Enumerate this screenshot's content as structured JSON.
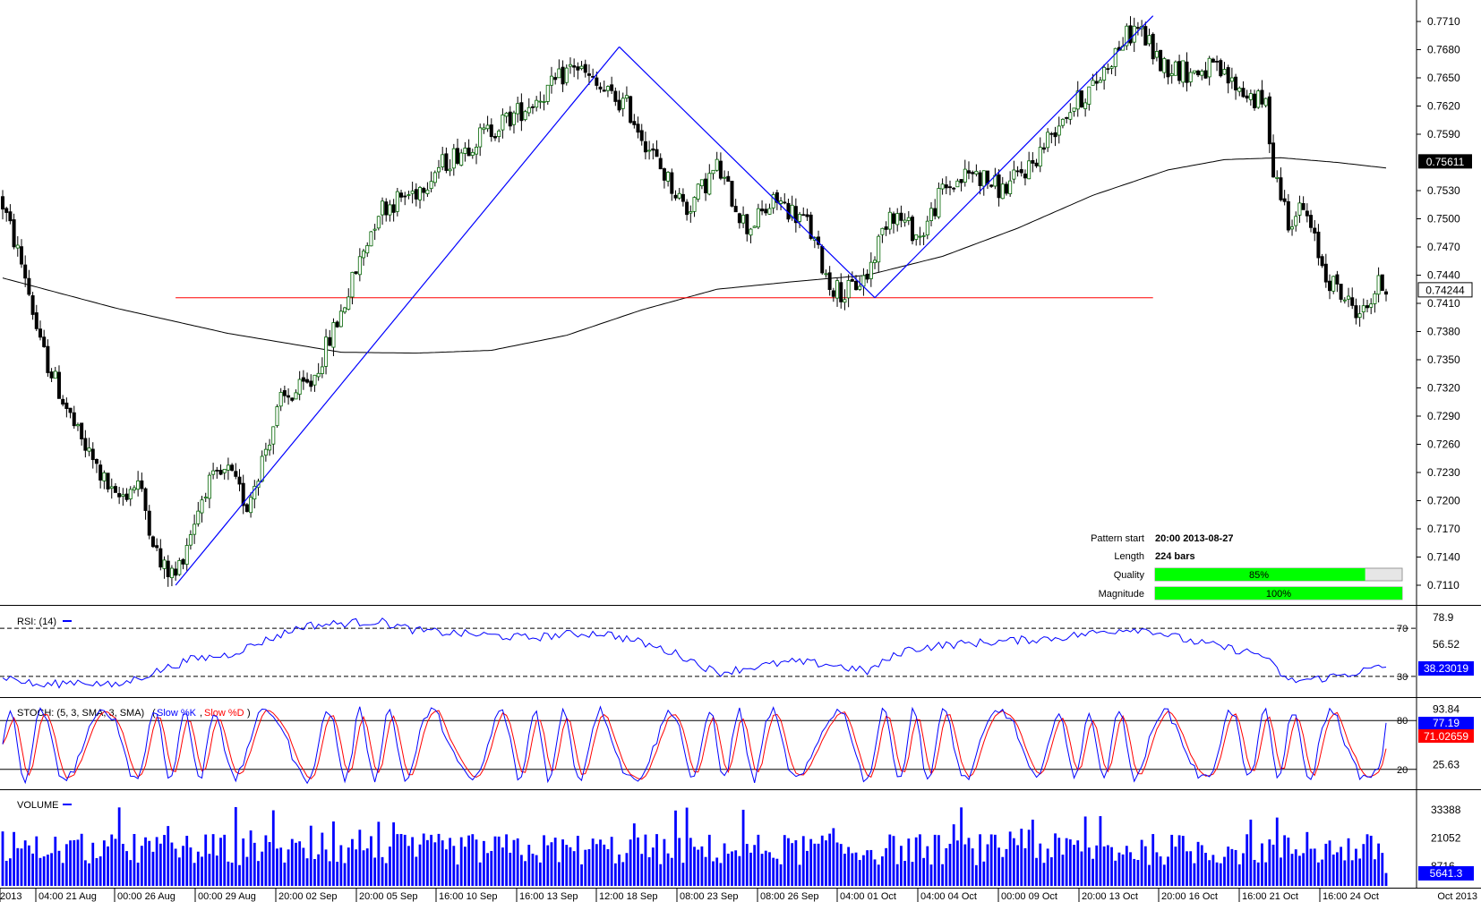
{
  "colors": {
    "candle_bull": "#006400",
    "candle_bear": "#000000",
    "pattern_line": "#0000ff",
    "level_line": "#ff0000",
    "ma_line": "#000000",
    "rsi_line": "#0000ff",
    "stoch_k": "#0000ff",
    "stoch_d": "#ff0000",
    "volume_bar": "#0000ff",
    "quality_fill": "#00ff00",
    "price_tag_bg": "#000000",
    "indicator_tag_bg": "#0000ff",
    "stoch_tag_bg": "#ff0000"
  },
  "chart_data": {
    "type": "candlestick",
    "price_axis": {
      "range": [
        0.7095,
        0.7725
      ],
      "ticks": [
        "0.7710",
        "0.7680",
        "0.7650",
        "0.7620",
        "0.7590",
        "0.7530",
        "0.7500",
        "0.7470",
        "0.7440",
        "0.7410",
        "0.7380",
        "0.7350",
        "0.7320",
        "0.7290",
        "0.7260",
        "0.7230",
        "0.7200",
        "0.7170",
        "0.7140",
        "0.7110"
      ],
      "current_tag": "0.75611",
      "current_value": 0.75611,
      "last_tag": "0.74244",
      "last_value": 0.74244
    },
    "time_axis": {
      "labels": [
        "2013",
        "04:00 21 Aug",
        "00:00 26 Aug",
        "00:00 29 Aug",
        "20:00 02 Sep",
        "20:00 05 Sep",
        "16:00 10 Sep",
        "16:00 13 Sep",
        "12:00 18 Sep",
        "08:00 23 Sep",
        "08:00 26 Sep",
        "04:00 01 Oct",
        "04:00 04 Oct",
        "00:00 09 Oct",
        "20:00 13 Oct",
        "20:00 16 Oct",
        "16:00 21 Oct",
        "16:00 24 Oct"
      ],
      "right_label": "Oct 2013"
    },
    "anchors": [
      [
        0,
        0.7515
      ],
      [
        6,
        0.744
      ],
      [
        10,
        0.7365
      ],
      [
        20,
        0.727
      ],
      [
        30,
        0.72
      ],
      [
        36,
        0.722
      ],
      [
        42,
        0.713
      ],
      [
        46,
        0.712
      ],
      [
        54,
        0.7215
      ],
      [
        60,
        0.723
      ],
      [
        65,
        0.7195
      ],
      [
        74,
        0.7305
      ],
      [
        82,
        0.7325
      ],
      [
        90,
        0.74
      ],
      [
        100,
        0.751
      ],
      [
        110,
        0.753
      ],
      [
        116,
        0.7555
      ],
      [
        126,
        0.7585
      ],
      [
        136,
        0.761
      ],
      [
        146,
        0.764
      ],
      [
        152,
        0.7665
      ],
      [
        158,
        0.764
      ],
      [
        166,
        0.762
      ],
      [
        174,
        0.756
      ],
      [
        182,
        0.751
      ],
      [
        190,
        0.7555
      ],
      [
        198,
        0.749
      ],
      [
        206,
        0.752
      ],
      [
        214,
        0.7495
      ],
      [
        220,
        0.743
      ],
      [
        224,
        0.742
      ],
      [
        230,
        0.744
      ],
      [
        236,
        0.751
      ],
      [
        244,
        0.748
      ],
      [
        250,
        0.753
      ],
      [
        258,
        0.755
      ],
      [
        266,
        0.753
      ],
      [
        274,
        0.756
      ],
      [
        282,
        0.761
      ],
      [
        290,
        0.764
      ],
      [
        298,
        0.769
      ],
      [
        302,
        0.7705
      ],
      [
        308,
        0.7665
      ],
      [
        316,
        0.7655
      ],
      [
        322,
        0.766
      ],
      [
        330,
        0.7635
      ],
      [
        336,
        0.762
      ],
      [
        338,
        0.7555
      ],
      [
        342,
        0.75
      ],
      [
        346,
        0.751
      ],
      [
        352,
        0.744
      ],
      [
        358,
        0.741
      ],
      [
        362,
        0.74
      ],
      [
        366,
        0.743
      ],
      [
        368,
        0.7425
      ]
    ],
    "moving_average": [
      [
        0,
        0.7437
      ],
      [
        30,
        0.7405
      ],
      [
        60,
        0.7378
      ],
      [
        90,
        0.7358
      ],
      [
        110,
        0.7357
      ],
      [
        130,
        0.736
      ],
      [
        150,
        0.7376
      ],
      [
        170,
        0.7403
      ],
      [
        190,
        0.7425
      ],
      [
        210,
        0.7433
      ],
      [
        230,
        0.744
      ],
      [
        250,
        0.746
      ],
      [
        270,
        0.749
      ],
      [
        290,
        0.7525
      ],
      [
        310,
        0.7552
      ],
      [
        325,
        0.7563
      ],
      [
        340,
        0.7565
      ],
      [
        355,
        0.756
      ],
      [
        368,
        0.7554
      ]
    ],
    "pattern_lines": [
      {
        "from": [
          46,
          0.711
        ],
        "to": [
          164,
          0.7683
        ]
      },
      {
        "from": [
          164,
          0.7683
        ],
        "to": [
          232,
          0.7416
        ]
      },
      {
        "from": [
          232,
          0.7416
        ],
        "to": [
          306,
          0.7716
        ]
      }
    ],
    "horizontal_level": {
      "value": 0.7416,
      "from_bar": 46,
      "to_bar": 306
    },
    "pattern_info": {
      "start_label": "Pattern start",
      "start_value": "20:00 2013-08-27",
      "length_label": "Length",
      "length_value": "224 bars",
      "quality_label": "Quality",
      "quality_text": "85%",
      "quality": 0.85,
      "magnitude_label": "Magnitude",
      "magnitude_text": "100%",
      "magnitude": 1.0
    },
    "rsi": {
      "label": "RSI: (14)",
      "axis_ticks": [
        "78.9",
        "56.52",
        "34.11"
      ],
      "levels": [
        70,
        30
      ],
      "level_labels": [
        "70",
        "30"
      ],
      "tag": "38.23019",
      "value": 38.23019,
      "anchors": [
        [
          0,
          30
        ],
        [
          10,
          22
        ],
        [
          20,
          26
        ],
        [
          30,
          22
        ],
        [
          40,
          33
        ],
        [
          50,
          44
        ],
        [
          60,
          48
        ],
        [
          70,
          60
        ],
        [
          80,
          72
        ],
        [
          90,
          74
        ],
        [
          100,
          76
        ],
        [
          110,
          68
        ],
        [
          120,
          66
        ],
        [
          130,
          64
        ],
        [
          140,
          62
        ],
        [
          150,
          65
        ],
        [
          160,
          66
        ],
        [
          170,
          58
        ],
        [
          180,
          48
        ],
        [
          190,
          33
        ],
        [
          200,
          38
        ],
        [
          210,
          42
        ],
        [
          220,
          40
        ],
        [
          230,
          34
        ],
        [
          240,
          52
        ],
        [
          250,
          56
        ],
        [
          260,
          58
        ],
        [
          270,
          60
        ],
        [
          280,
          62
        ],
        [
          290,
          66
        ],
        [
          300,
          70
        ],
        [
          306,
          68
        ],
        [
          315,
          60
        ],
        [
          325,
          54
        ],
        [
          335,
          48
        ],
        [
          342,
          26
        ],
        [
          350,
          28
        ],
        [
          358,
          32
        ],
        [
          364,
          36
        ],
        [
          368,
          38
        ]
      ]
    },
    "stochastic": {
      "label": "STOCH: (5, 3, SMA, 3, SMA)",
      "k_label": "Slow %K",
      "d_label": "Slow %D",
      "axis_ticks": [
        "93.84",
        "59.74",
        "25.63"
      ],
      "levels": [
        80,
        20
      ],
      "level_labels": [
        "80",
        "20"
      ],
      "k_tag": "77.19",
      "d_tag": "71.02659",
      "k_value": 77.19,
      "d_value": 71.02659
    },
    "volume": {
      "label": "VOLUME",
      "axis_ticks": [
        "33388",
        "21052",
        "8716"
      ],
      "tag": "5641.3",
      "value": 5641.3,
      "max": 40000
    }
  }
}
